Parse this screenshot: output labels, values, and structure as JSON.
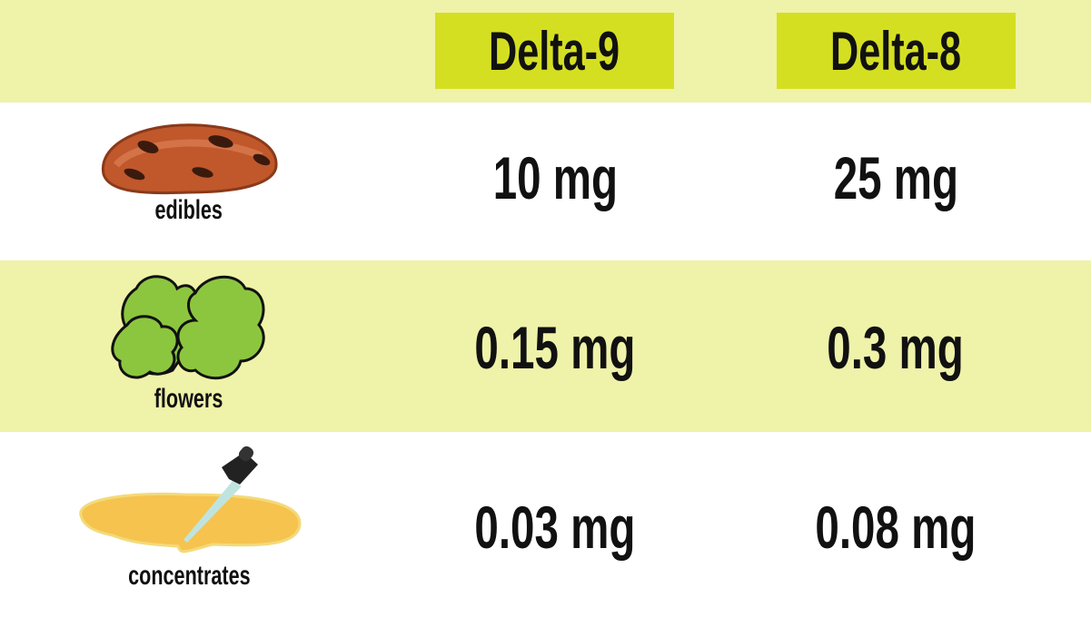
{
  "columns": [
    "Delta-9",
    "Delta-8"
  ],
  "rows": [
    {
      "label": "edibles",
      "icon": "cookie-icon",
      "delta9": "10 mg",
      "delta8": "25 mg"
    },
    {
      "label": "flowers",
      "icon": "cannabis-flower-icon",
      "delta9": "0.15 mg",
      "delta8": "0.3 mg"
    },
    {
      "label": "concentrates",
      "icon": "dropper-concentrate-icon",
      "delta9": "0.03 mg",
      "delta8": "0.08 mg"
    }
  ],
  "colors": {
    "band": "#eff2a9",
    "header_box": "#d5df22",
    "text": "#111111"
  }
}
